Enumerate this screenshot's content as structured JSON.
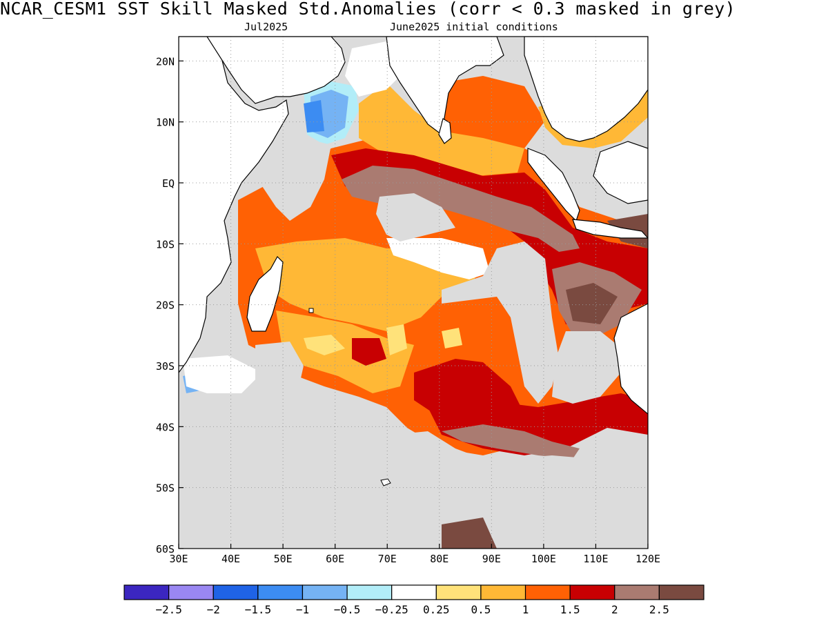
{
  "header": {
    "title": "NCAR_CESM1   SST Skill Masked Std.Anomalies (corr < 0.3 masked in grey)",
    "valid_month": "Jul2025",
    "init": "June2025 initial conditions"
  },
  "map": {
    "lon_range": [
      30,
      120
    ],
    "lat_range": [
      -60,
      24
    ],
    "lon_ticks": [
      {
        "value": 30,
        "label": "30E"
      },
      {
        "value": 40,
        "label": "40E"
      },
      {
        "value": 50,
        "label": "50E"
      },
      {
        "value": 60,
        "label": "60E"
      },
      {
        "value": 70,
        "label": "70E"
      },
      {
        "value": 80,
        "label": "80E"
      },
      {
        "value": 90,
        "label": "90E"
      },
      {
        "value": 100,
        "label": "100E"
      },
      {
        "value": 110,
        "label": "110E"
      },
      {
        "value": 120,
        "label": "120E"
      }
    ],
    "lat_ticks": [
      {
        "value": 20,
        "label": "20N"
      },
      {
        "value": 10,
        "label": "10N"
      },
      {
        "value": 0,
        "label": "EQ"
      },
      {
        "value": -10,
        "label": "10S"
      },
      {
        "value": -20,
        "label": "20S"
      },
      {
        "value": -30,
        "label": "30S"
      },
      {
        "value": -40,
        "label": "40S"
      },
      {
        "value": -50,
        "label": "50S"
      },
      {
        "value": -60,
        "label": "60S"
      }
    ],
    "grid": "dotted",
    "mask_color": "#dcdcdc",
    "land_color": "#ffffff",
    "coast_color": "#000000"
  },
  "colorbar": {
    "colors": [
      "#3b26c0",
      "#9a87f2",
      "#1f63e6",
      "#3c8cf2",
      "#75b3f4",
      "#b2edf8",
      "#ffffff",
      "#ffe27a",
      "#ffb836",
      "#ff6104",
      "#c80002",
      "#aa7b71",
      "#7a4a40"
    ],
    "labels": [
      "−2.5",
      "−2",
      "−1.5",
      "−1",
      "−0.5",
      "−0.25",
      "0.25",
      "0.5",
      "1",
      "1.5",
      "2",
      "2.5"
    ]
  }
}
